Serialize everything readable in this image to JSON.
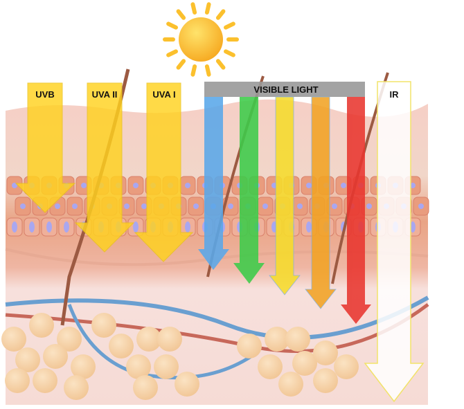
{
  "labels": {
    "uvb": "UVB",
    "uva2": "UVA II",
    "uva1": "UVA I",
    "visible": "VISIBLE LIGHT",
    "ir": "IR"
  },
  "colors": {
    "uv_arrow": "#ffd21f",
    "blue": "#5aa8ea",
    "green": "#3dcc4a",
    "yellow": "#f6dc2c",
    "orange": "#f2a325",
    "red": "#e8362f",
    "visible_bar": "#999999",
    "ir_outline": "#f2e36a",
    "sun": "#fbc02d"
  },
  "icons": [
    "sun-icon"
  ]
}
